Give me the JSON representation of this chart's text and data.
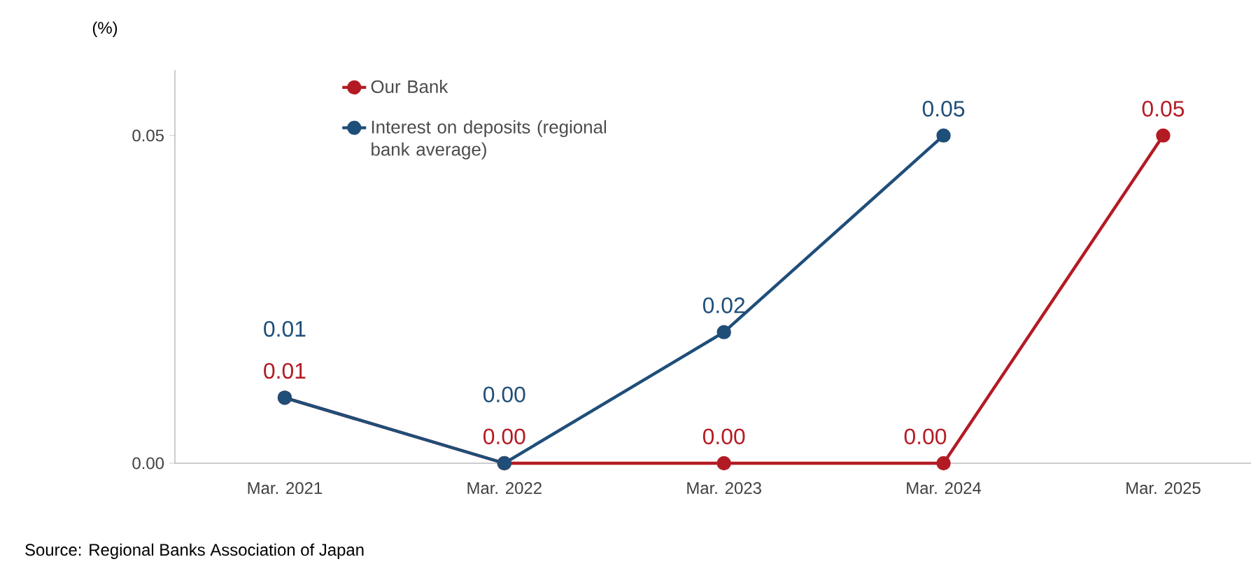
{
  "chart_data": {
    "type": "line",
    "ylabel": "(%)",
    "categories": [
      "Mar. 2021",
      "Mar. 2022",
      "Mar. 2023",
      "Mar. 2024",
      "Mar. 2025"
    ],
    "series": [
      {
        "name": "Our Bank",
        "color": "#b31b24",
        "values": [
          0.01,
          0.0,
          0.0,
          0.0,
          0.05
        ],
        "value_labels": [
          "0.01",
          "0.00",
          "0.00",
          "0.00",
          "0.05"
        ]
      },
      {
        "name": "Interest on deposits (regional bank average)",
        "color": "#1f4e79",
        "values": [
          0.01,
          0.0,
          0.02,
          0.05,
          null
        ],
        "value_labels": [
          "0.01",
          "0.00",
          "0.02",
          "0.05",
          null
        ]
      }
    ],
    "ylim": [
      0,
      0.06
    ],
    "yticks": [
      {
        "value": 0,
        "label": "0.00"
      },
      {
        "value": 0.05,
        "label": "0.05"
      }
    ],
    "marker": "circle",
    "line_style": "solid",
    "legend": "top left",
    "grid": false,
    "annotations": [
      "Source: Regional Banks Association of Japan"
    ]
  }
}
